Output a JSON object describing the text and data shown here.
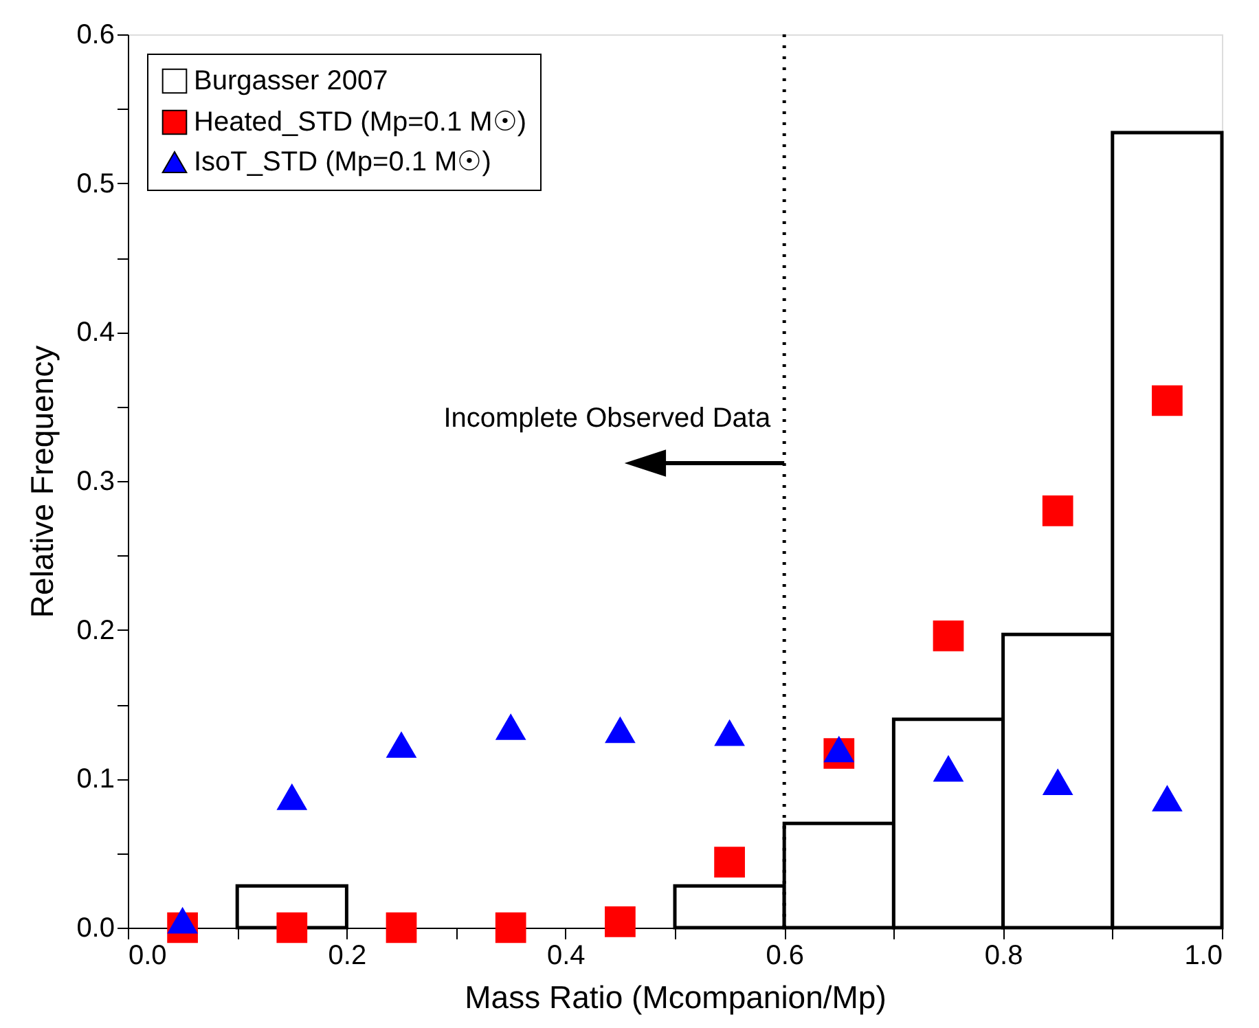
{
  "chart_data": {
    "type": "histogram",
    "xlabel": "Mass Ratio (Mcompanion/Mp)",
    "ylabel": "Relative Frequency",
    "xlim": [
      0,
      1
    ],
    "ylim": [
      0,
      0.6
    ],
    "xticks": [
      {
        "value": 0,
        "label": "0.0"
      },
      {
        "value": 0.1,
        "label": null
      },
      {
        "value": 0.2,
        "label": "0.2"
      },
      {
        "value": 0.3,
        "label": null
      },
      {
        "value": 0.4,
        "label": "0.4"
      },
      {
        "value": 0.5,
        "label": null
      },
      {
        "value": 0.6,
        "label": "0.6"
      },
      {
        "value": 0.7,
        "label": null
      },
      {
        "value": 0.8,
        "label": "0.8"
      },
      {
        "value": 0.9,
        "label": null
      },
      {
        "value": 1,
        "label": "1.0"
      }
    ],
    "yticks": [
      {
        "value": 0,
        "label": "0.0"
      },
      {
        "value": 0.05,
        "label": null
      },
      {
        "value": 0.1,
        "label": "0.1"
      },
      {
        "value": 0.15,
        "label": null
      },
      {
        "value": 0.2,
        "label": "0.2"
      },
      {
        "value": 0.25,
        "label": null
      },
      {
        "value": 0.3,
        "label": "0.3"
      },
      {
        "value": 0.35,
        "label": null
      },
      {
        "value": 0.4,
        "label": "0.4"
      },
      {
        "value": 0.45,
        "label": null
      },
      {
        "value": 0.5,
        "label": "0.5"
      },
      {
        "value": 0.55,
        "label": null
      },
      {
        "value": 0.6,
        "label": "0.6"
      }
    ],
    "grid": false,
    "legend": "top left",
    "series": [
      {
        "name": "Burgasser 2007",
        "color": "#ffffff",
        "bins": [
          0,
          0.1,
          0.2,
          0.3,
          0.4,
          0.5,
          0.6,
          0.7,
          0.8,
          0.9,
          1.0
        ],
        "values": [
          0,
          0.028,
          0,
          0,
          0,
          0.028,
          0.07,
          0.14,
          0.197,
          0.534
        ]
      },
      {
        "name": "Heated_STD (Mp=0.1 M☉)",
        "type": "scatter",
        "marker": "square",
        "color": "#ff0000",
        "x": [
          0.05,
          0.15,
          0.25,
          0.35,
          0.45,
          0.55,
          0.65,
          0.75,
          0.85,
          0.95
        ],
        "values": [
          0,
          0,
          0,
          0,
          0.004,
          0.044,
          0.117,
          0.196,
          0.28,
          0.354
        ]
      },
      {
        "name": "IsoT_STD (Mp=0.1 M☉)",
        "type": "scatter",
        "marker": "triangle",
        "color": "#0000ff",
        "x": [
          0.05,
          0.15,
          0.25,
          0.35,
          0.45,
          0.55,
          0.65,
          0.75,
          0.85,
          0.95
        ],
        "values": [
          0.005,
          0.088,
          0.123,
          0.135,
          0.133,
          0.131,
          0.12,
          0.107,
          0.098,
          0.087
        ]
      }
    ],
    "ref_lines": [
      {
        "axis": "x",
        "value": 0.6,
        "line_style": "dotted",
        "color": "#000000"
      }
    ],
    "annotations": [
      "Incomplete Observed Data"
    ]
  }
}
